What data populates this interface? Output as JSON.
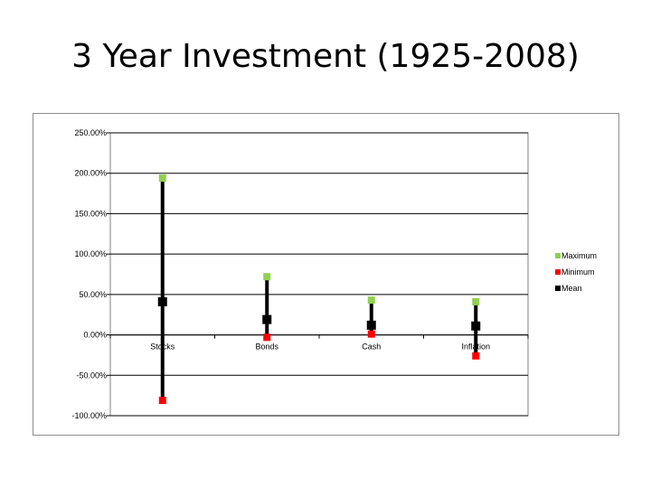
{
  "slide": {
    "title": "3 Year Investment (1925-2008)"
  },
  "chart_data": {
    "type": "scatter",
    "subtype": "high-low-mean",
    "title": "3 Year Investment (1925-2008)",
    "xlabel": "",
    "ylabel": "",
    "categories": [
      "Stocks",
      "Bonds",
      "Cash",
      "Inflation"
    ],
    "ylim": [
      -100,
      250
    ],
    "ytick_values": [
      -100,
      -50,
      0,
      50,
      100,
      150,
      200,
      250
    ],
    "ytick_labels": [
      "-100.00%",
      "-50.00%",
      "0.00%",
      "50.00%",
      "100.00%",
      "150.00%",
      "200.00%",
      "250.00%"
    ],
    "grid": true,
    "legend_position": "right",
    "series": [
      {
        "name": "Maximum",
        "color": "#92d050",
        "values": [
          194,
          72,
          43,
          41
        ]
      },
      {
        "name": "Minimum",
        "color": "#ff0000",
        "values": [
          -81,
          -3,
          1,
          -26
        ]
      },
      {
        "name": "Mean",
        "color": "#000000",
        "values": [
          41,
          19,
          12,
          11
        ]
      }
    ]
  }
}
